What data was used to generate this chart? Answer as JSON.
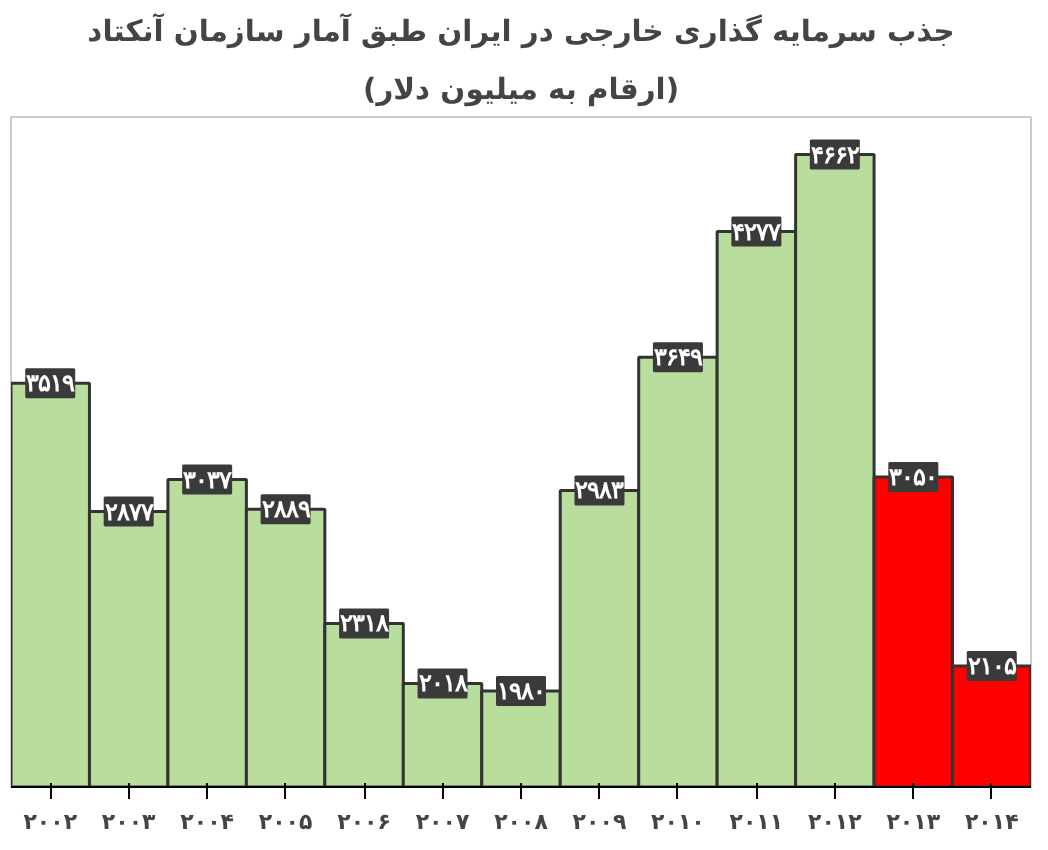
{
  "chart_data": {
    "type": "bar",
    "title": "جذب سرمایه گذاری خارجی در ایران طبق آمار سازمان آنکتاد",
    "subtitle": "(ارقام به میلیون دلار)",
    "categories": [
      "۲۰۰۲",
      "۲۰۰۳",
      "۲۰۰۴",
      "۲۰۰۵",
      "۲۰۰۶",
      "۲۰۰۷",
      "۲۰۰۸",
      "۲۰۰۹",
      "۲۰۱۰",
      "۲۰۱۱",
      "۲۰۱۲",
      "۲۰۱۳",
      "۲۰۱۴"
    ],
    "values": [
      3519,
      2877,
      3037,
      2889,
      2318,
      2018,
      1980,
      2983,
      3649,
      4277,
      4662,
      3050,
      2105
    ],
    "value_labels": [
      "۳۵۱۹",
      "۲۸۷۷",
      "۳۰۳۷",
      "۲۸۸۹",
      "۲۳۱۸",
      "۲۰۱۸",
      "۱۹۸۰",
      "۲۹۸۳",
      "۳۶۴۹",
      "۴۲۷۷",
      "۴۶۶۲",
      "۳۰۵۰",
      "۲۱۰۵"
    ],
    "colors": [
      "#b9dd9d",
      "#b9dd9d",
      "#b9dd9d",
      "#b9dd9d",
      "#b9dd9d",
      "#b9dd9d",
      "#b9dd9d",
      "#b9dd9d",
      "#b9dd9d",
      "#b9dd9d",
      "#b9dd9d",
      "#ff0000",
      "#ff0000"
    ],
    "ylim": [
      1500,
      4850
    ],
    "grid": false
  }
}
